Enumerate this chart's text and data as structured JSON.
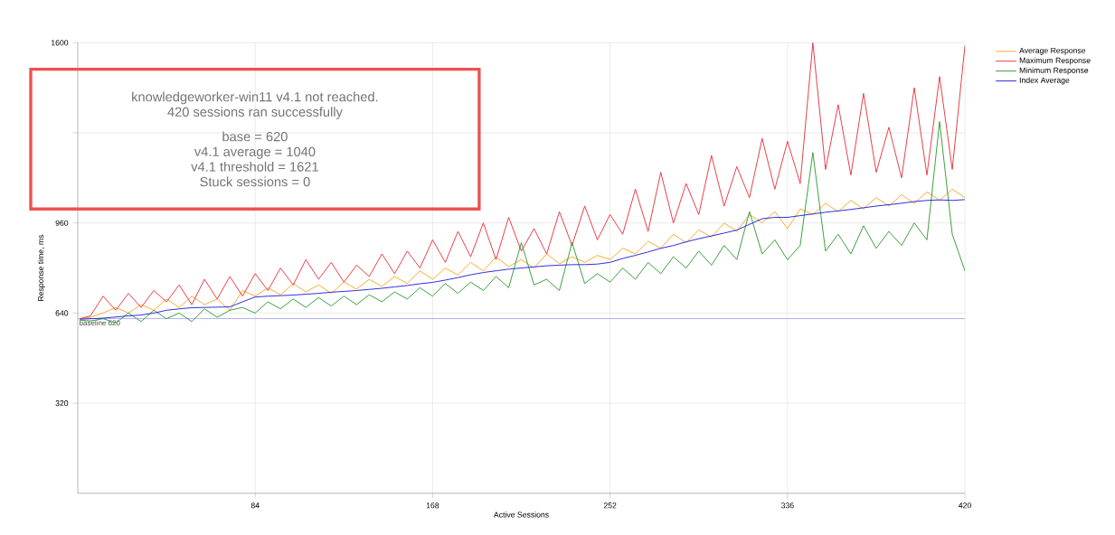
{
  "chart_data": {
    "type": "line",
    "xlabel": "Active Sessions",
    "ylabel": "Response time, ms",
    "x": [
      1,
      6,
      12,
      18,
      24,
      30,
      36,
      42,
      48,
      54,
      60,
      66,
      72,
      78,
      84,
      90,
      96,
      102,
      108,
      114,
      120,
      126,
      132,
      138,
      144,
      150,
      156,
      162,
      168,
      174,
      180,
      186,
      192,
      198,
      204,
      210,
      216,
      222,
      228,
      234,
      240,
      246,
      252,
      258,
      264,
      270,
      276,
      282,
      288,
      294,
      300,
      306,
      312,
      318,
      324,
      330,
      336,
      342,
      348,
      354,
      360,
      366,
      372,
      378,
      384,
      390,
      396,
      402,
      408,
      414,
      420
    ],
    "series": [
      {
        "name": "Average Response",
        "color": "#f5a623",
        "values": [
          620,
          625,
          640,
          660,
          640,
          670,
          650,
          690,
          660,
          700,
          670,
          690,
          650,
          720,
          700,
          730,
          705,
          745,
          715,
          740,
          710,
          750,
          725,
          760,
          735,
          770,
          745,
          790,
          760,
          800,
          775,
          820,
          790,
          840,
          805,
          830,
          800,
          850,
          815,
          840,
          820,
          845,
          830,
          870,
          850,
          895,
          870,
          920,
          890,
          935,
          910,
          960,
          930,
          990,
          960,
          1000,
          940,
          1010,
          990,
          1030,
          1000,
          1040,
          1010,
          1050,
          1020,
          1060,
          1030,
          1070,
          1040,
          1080,
          1050
        ]
      },
      {
        "name": "Maximum Response",
        "color": "#e8323c",
        "values": [
          620,
          630,
          700,
          650,
          710,
          660,
          720,
          680,
          740,
          670,
          760,
          690,
          770,
          700,
          780,
          720,
          800,
          740,
          830,
          760,
          820,
          750,
          810,
          770,
          850,
          780,
          860,
          800,
          900,
          820,
          930,
          840,
          960,
          830,
          980,
          860,
          940,
          850,
          1000,
          880,
          1020,
          900,
          990,
          920,
          1080,
          930,
          1140,
          960,
          1100,
          990,
          1200,
          1020,
          1160,
          1050,
          1260,
          1080,
          1250,
          1100,
          1600,
          1150,
          1380,
          1130,
          1420,
          1140,
          1300,
          1120,
          1440,
          1130,
          1480,
          1150,
          1590
        ]
      },
      {
        "name": "Minimum Response",
        "color": "#2e9a2e",
        "values": [
          615,
          612,
          620,
          605,
          640,
          610,
          650,
          620,
          640,
          610,
          655,
          625,
          650,
          660,
          640,
          680,
          655,
          690,
          660,
          695,
          665,
          700,
          670,
          705,
          680,
          715,
          690,
          730,
          700,
          745,
          710,
          750,
          720,
          770,
          730,
          890,
          740,
          760,
          720,
          890,
          745,
          780,
          750,
          800,
          760,
          820,
          780,
          840,
          800,
          860,
          810,
          880,
          830,
          1000,
          850,
          900,
          830,
          880,
          1210,
          860,
          920,
          850,
          950,
          870,
          930,
          880,
          960,
          900,
          1320,
          920,
          790
        ]
      },
      {
        "name": "Index Average",
        "color": "#2020e0",
        "values": [
          618,
          620,
          622,
          626,
          630,
          633,
          640,
          650,
          655,
          659,
          660,
          661,
          662,
          680,
          697,
          700,
          702,
          704,
          707,
          710,
          714,
          717,
          720,
          724,
          728,
          733,
          738,
          744,
          749,
          757,
          766,
          776,
          784,
          790,
          796,
          800,
          804,
          808,
          810,
          812,
          812,
          814,
          820,
          834,
          845,
          857,
          870,
          880,
          893,
          904,
          914,
          924,
          935,
          955,
          975,
          980,
          980,
          986,
          992,
          998,
          1003,
          1008,
          1014,
          1020,
          1025,
          1030,
          1036,
          1040,
          1042,
          1040,
          1043
        ]
      }
    ],
    "xlim": [
      0,
      420
    ],
    "xticks": [
      84,
      168,
      252,
      336,
      420
    ],
    "ylim": [
      0,
      1600
    ],
    "yticks": [
      320,
      640,
      960,
      {
        "value": 1280,
        "label": null
      },
      1600
    ],
    "ref_lines": [
      {
        "axis": "y",
        "value": 620,
        "label": "baseline 620",
        "color": "#a0a0f0"
      }
    ],
    "annotations": [
      "knowledgeworker-win11 v4.1 not reached.",
      "420 sessions ran successfully",
      "base = 620",
      "v4.1 average = 1040",
      "v4.1 threshold = 1621",
      "Stuck sessions = 0"
    ],
    "grid": true,
    "legend": "top right",
    "marker": "none",
    "line_style": "solid"
  }
}
